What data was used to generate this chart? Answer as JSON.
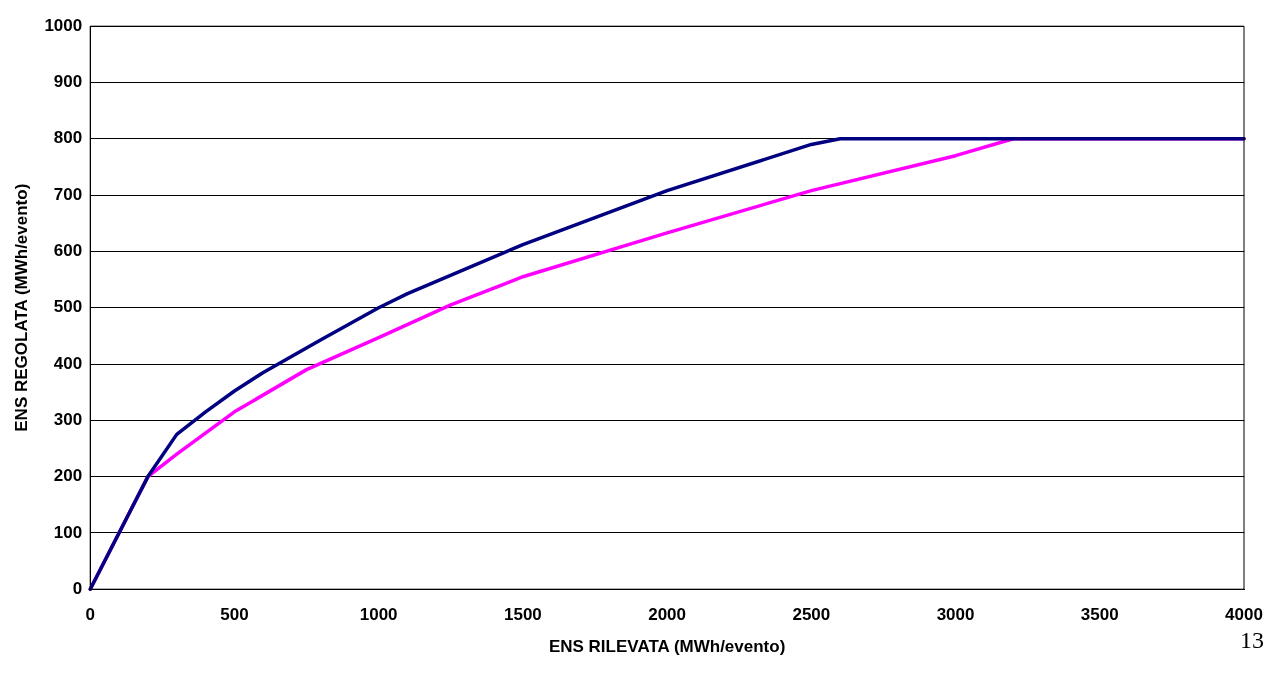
{
  "chart_data": {
    "type": "line",
    "xlabel": "ENS RILEVATA (MWh/evento)",
    "ylabel": "ENS REGOLATA (MWh/evento)",
    "xlim": [
      0,
      4000
    ],
    "xticks": [
      0,
      500,
      1000,
      1500,
      2000,
      2500,
      3000,
      3500,
      4000
    ],
    "ylim": [
      0,
      1000
    ],
    "yticks": [
      0,
      100,
      200,
      300,
      400,
      500,
      600,
      700,
      800,
      900,
      1000
    ],
    "grid": "y",
    "marker": "none",
    "line_style": "solid",
    "series": [
      {
        "color": "#000080",
        "x": [
          0,
          200,
          300,
          400,
          500,
          600,
          800,
          1000,
          1100,
          1500,
          2000,
          2500,
          2600,
          4000
        ],
        "values": [
          0,
          200,
          275,
          315,
          352,
          385,
          443,
          500,
          525,
          612,
          708,
          790,
          800,
          800
        ]
      },
      {
        "color": "#ff00ff",
        "x": [
          0,
          200,
          300,
          500,
          750,
          1000,
          1250,
          1500,
          2000,
          2500,
          3000,
          3200,
          4000
        ],
        "values": [
          0,
          200,
          240,
          315,
          390,
          447,
          505,
          555,
          633,
          708,
          770,
          800,
          800
        ]
      }
    ],
    "annotations": [
      "13"
    ]
  }
}
